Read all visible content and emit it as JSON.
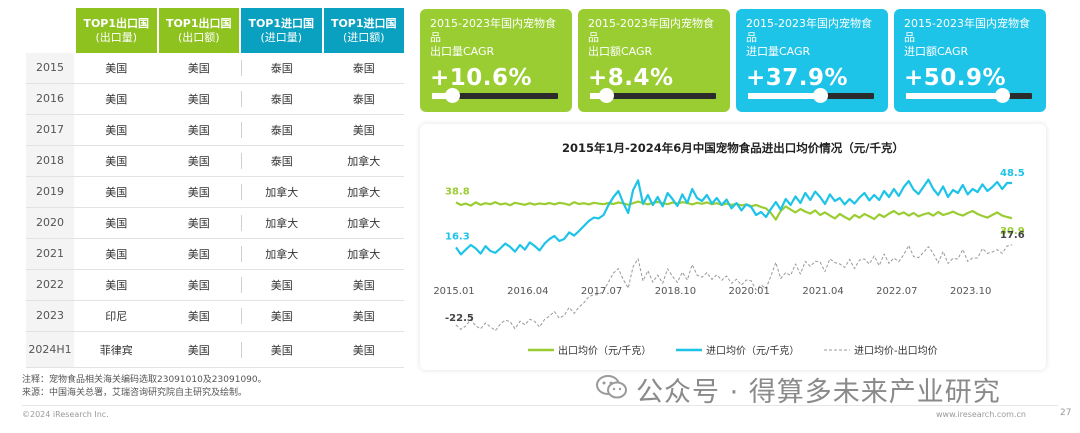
{
  "table": {
    "headers": [
      {
        "title": "TOP1出口国",
        "sub": "(出口量)",
        "color": "#8dc21f"
      },
      {
        "title": "TOP1出口国",
        "sub": "(出口额)",
        "color": "#8dc21f"
      },
      {
        "title": "TOP1进口国",
        "sub": "(进口量)",
        "color": "#0aa0bf"
      },
      {
        "title": "TOP1进口国",
        "sub": "(进口额)",
        "color": "#0aa0bf"
      }
    ],
    "rows": [
      {
        "year": "2015",
        "cells": [
          "美国",
          "美国",
          "泰国",
          "泰国"
        ]
      },
      {
        "year": "2016",
        "cells": [
          "美国",
          "美国",
          "泰国",
          "泰国"
        ]
      },
      {
        "year": "2017",
        "cells": [
          "美国",
          "美国",
          "泰国",
          "美国"
        ]
      },
      {
        "year": "2018",
        "cells": [
          "美国",
          "美国",
          "泰国",
          "加拿大"
        ]
      },
      {
        "year": "2019",
        "cells": [
          "美国",
          "美国",
          "加拿大",
          "加拿大"
        ]
      },
      {
        "year": "2020",
        "cells": [
          "美国",
          "美国",
          "加拿大",
          "加拿大"
        ]
      },
      {
        "year": "2021",
        "cells": [
          "美国",
          "美国",
          "加拿大",
          "加拿大"
        ]
      },
      {
        "year": "2022",
        "cells": [
          "美国",
          "美国",
          "美国",
          "美国"
        ]
      },
      {
        "year": "2023",
        "cells": [
          "印尼",
          "美国",
          "美国",
          "美国"
        ]
      },
      {
        "year": "2024",
        "year2": "H1",
        "cells": [
          "菲律宾",
          "美国",
          "美国",
          "美国"
        ]
      }
    ]
  },
  "cards": [
    {
      "title": "2015-2023年国内宠物食品",
      "title2": "出口量CAGR",
      "value": "+10.6%",
      "level": 0.106,
      "color": "#9acd32"
    },
    {
      "title": "2015-2023年国内宠物食品",
      "title2": "出口额CAGR",
      "value": "+8.4%",
      "level": 0.084,
      "color": "#9acd32"
    },
    {
      "title": "2015-2023年国内宠物食品",
      "title2": "进口量CAGR",
      "value": "+37.9%",
      "level": 0.379,
      "color": "#1ec3e8"
    },
    {
      "title": "2015-2023年国内宠物食品",
      "title2": "进口额CAGR",
      "value": "+50.9%",
      "level": 0.509,
      "color": "#1ec3e8"
    }
  ],
  "chart_data": {
    "type": "line",
    "title": "2015年1月-2024年6月中国宠物食品进出口均价情况（元/千克）",
    "x_ticks": [
      "2015.01",
      "2016.04",
      "2017.07",
      "2018.10",
      "2020.01",
      "2021.04",
      "2022.07",
      "2023.10"
    ],
    "ylim": [
      -30,
      60
    ],
    "grid": false,
    "legend_position": "bottom",
    "series": [
      {
        "name": "出口均价（元/千克）",
        "color": "#9acd32",
        "dash": false,
        "start_label": "38.8",
        "end_label": "30.9",
        "values": [
          38.8,
          37.5,
          38.2,
          37.2,
          38.8,
          37.6,
          38.4,
          37.9,
          38.9,
          37.8,
          38.3,
          37.4,
          38.6,
          38.1,
          37.6,
          38.4,
          37.7,
          38.3,
          37.9,
          38.5,
          37.8,
          38.6,
          38.2,
          37.5,
          38.9,
          38.0,
          38.4,
          37.8,
          38.6,
          38.2,
          37.9,
          38.5,
          38.0,
          38.8,
          38.3,
          37.6,
          38.4,
          39.2,
          38.5,
          37.8,
          38.6,
          39.0,
          38.4,
          37.9,
          38.7,
          38.2,
          38.9,
          38.5,
          37.8,
          38.6,
          38.1,
          38.8,
          37.9,
          38.4,
          37.6,
          38.2,
          37.5,
          38.1,
          37.3,
          37.8,
          36.9,
          37.5,
          36.5,
          35.8,
          33.5,
          30.2,
          34.5,
          36.8,
          35.2,
          33.8,
          35.5,
          34.2,
          33.2,
          34.8,
          32.5,
          33.8,
          32.2,
          30.8,
          33.0,
          31.5,
          30.2,
          32.5,
          31.2,
          33.0,
          31.8,
          30.5,
          32.8,
          31.5,
          33.2,
          34.5,
          32.8,
          33.8,
          32.2,
          33.5,
          31.8,
          32.8,
          33.5,
          32.2,
          34.0,
          32.5,
          33.2,
          34.2,
          33.0,
          32.2,
          33.5,
          34.5,
          33.0,
          32.0,
          31.2,
          32.5,
          33.8,
          32.2,
          31.5,
          30.9
        ]
      },
      {
        "name": "进口均价（元/千克）",
        "color": "#1ec3e8",
        "dash": false,
        "start_label": "16.3",
        "end_label": "48.5",
        "values": [
          16.3,
          12.8,
          15.2,
          17.5,
          15.8,
          13.2,
          16.9,
          14.5,
          13.6,
          15.8,
          18.2,
          16.6,
          14.2,
          17.5,
          15.2,
          18.8,
          17.0,
          14.8,
          18.2,
          20.5,
          22.0,
          19.5,
          20.5,
          23.8,
          22.2,
          24.5,
          27.0,
          29.5,
          31.2,
          30.8,
          32.5,
          37.5,
          41.5,
          44.5,
          38.5,
          33.5,
          45.0,
          49.8,
          38.0,
          42.5,
          37.5,
          41.5,
          36.8,
          43.5,
          40.5,
          37.0,
          42.8,
          38.5,
          45.5,
          41.0,
          39.5,
          42.5,
          38.2,
          41.0,
          37.5,
          40.2,
          35.8,
          38.5,
          34.8,
          37.8,
          36.5,
          32.5,
          34.0,
          31.5,
          35.5,
          39.0,
          35.2,
          40.5,
          37.5,
          41.8,
          38.5,
          43.5,
          40.0,
          44.2,
          41.5,
          38.0,
          42.8,
          39.5,
          41.0,
          37.8,
          40.5,
          38.2,
          41.2,
          43.5,
          39.8,
          42.5,
          40.0,
          44.5,
          41.5,
          45.5,
          42.0,
          46.5,
          49.5,
          45.2,
          43.0,
          46.5,
          50.2,
          45.5,
          42.5,
          46.8,
          41.5,
          45.0,
          43.5,
          47.5,
          42.8,
          45.5,
          44.0,
          47.8,
          44.5,
          46.5,
          49.0,
          45.5,
          48.5,
          48.5
        ]
      },
      {
        "name": "进口均价-出口均价",
        "color": "#999999",
        "dash": true,
        "start_label": "-22.5",
        "end_label": "17.6",
        "values": [
          -22.5,
          -24.7,
          -23.0,
          -19.7,
          -23.0,
          -24.4,
          -21.5,
          -23.4,
          -25.3,
          -22.0,
          -20.1,
          -20.8,
          -24.4,
          -20.6,
          -22.4,
          -19.6,
          -20.7,
          -23.5,
          -19.7,
          -18.0,
          -15.8,
          -19.1,
          -17.7,
          -13.7,
          -16.7,
          -13.5,
          -11.4,
          -8.3,
          -7.4,
          -7.4,
          -5.4,
          -1.0,
          3.5,
          5.7,
          0.2,
          -4.1,
          6.6,
          10.6,
          -0.5,
          4.7,
          -1.1,
          2.5,
          -1.6,
          5.6,
          1.8,
          -1.2,
          3.9,
          0.0,
          7.7,
          2.4,
          1.4,
          3.7,
          0.3,
          2.6,
          -0.1,
          2.0,
          -1.7,
          0.4,
          -2.5,
          0.0,
          -0.4,
          -5.0,
          -2.5,
          -4.3,
          2.0,
          8.8,
          0.7,
          3.7,
          2.3,
          8.0,
          3.0,
          9.3,
          6.8,
          9.4,
          9.0,
          4.2,
          10.6,
          8.7,
          8.0,
          6.3,
          10.3,
          5.7,
          10.0,
          10.5,
          8.0,
          12.0,
          7.2,
          13.0,
          8.3,
          11.0,
          9.2,
          12.7,
          17.3,
          11.7,
          11.2,
          13.7,
          16.7,
          13.3,
          8.5,
          14.3,
          8.3,
          10.8,
          10.5,
          15.3,
          9.3,
          11.0,
          11.0,
          15.8,
          13.3,
          14.0,
          15.2,
          13.3,
          17.0,
          17.6
        ]
      }
    ]
  },
  "notes": {
    "line1": "注释：宠物食品相关海关编码选取23091010及23091090。",
    "line2": "来源：中国海关总署，艾瑞咨询研究院自主研究及绘制。"
  },
  "watermark": "公众号 · 得算多未来产业研究",
  "footer": {
    "copyright": "©2024 iResearch Inc.",
    "site": "www.iresearch.com.cn",
    "page": "27"
  }
}
